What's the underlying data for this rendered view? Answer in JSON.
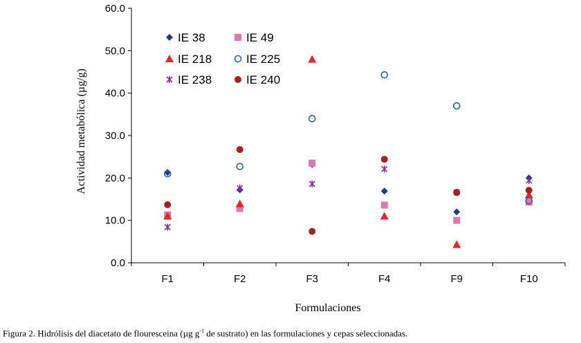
{
  "chart_data": {
    "type": "scatter",
    "title": "",
    "xlabel": "Formulaciones",
    "ylabel": "Actividad metabólica (µg/g)",
    "categories": [
      "F1",
      "F2",
      "F3",
      "F4",
      "F9",
      "F10"
    ],
    "ylim": [
      0,
      60
    ],
    "yticks": [
      "0.0",
      "10.0",
      "20.0",
      "30.0",
      "40.0",
      "50.0",
      "60.0"
    ],
    "legend_position": "top-left",
    "series": [
      {
        "name": "IE 38",
        "marker": "diamond",
        "color": "#1f3a8a",
        "values": [
          21.3,
          17.2,
          23.2,
          16.9,
          12.0,
          20.0
        ]
      },
      {
        "name": "IE 49",
        "marker": "square",
        "color": "#d67bb0",
        "values": [
          11.3,
          12.8,
          23.5,
          13.6,
          10.0,
          14.3
        ]
      },
      {
        "name": "IE 218",
        "marker": "triangle",
        "color": "#e8232a",
        "values": [
          11.0,
          13.9,
          48.0,
          11.0,
          4.3,
          16.0
        ]
      },
      {
        "name": "IE 225",
        "marker": "circle-open",
        "color": "#2e5cb8",
        "values": [
          21.0,
          22.7,
          34.0,
          44.3,
          37.0,
          14.6
        ]
      },
      {
        "name": "IE 238",
        "marker": "star",
        "color": "#8a2a9c",
        "values": [
          8.4,
          17.6,
          18.6,
          22.1,
          16.6,
          19.4
        ]
      },
      {
        "name": "IE 240",
        "marker": "circle-filled",
        "color": "#a3241f",
        "values": [
          13.7,
          26.7,
          7.4,
          24.4,
          16.6,
          17.1
        ]
      }
    ]
  },
  "caption": {
    "prefix": "Figura 2. Hidrólisis del diacetato de flouresceina (µg g",
    "superscript": "-1",
    "suffix": " de sustrato) en las formulaciones y cepas seleccionadas."
  }
}
